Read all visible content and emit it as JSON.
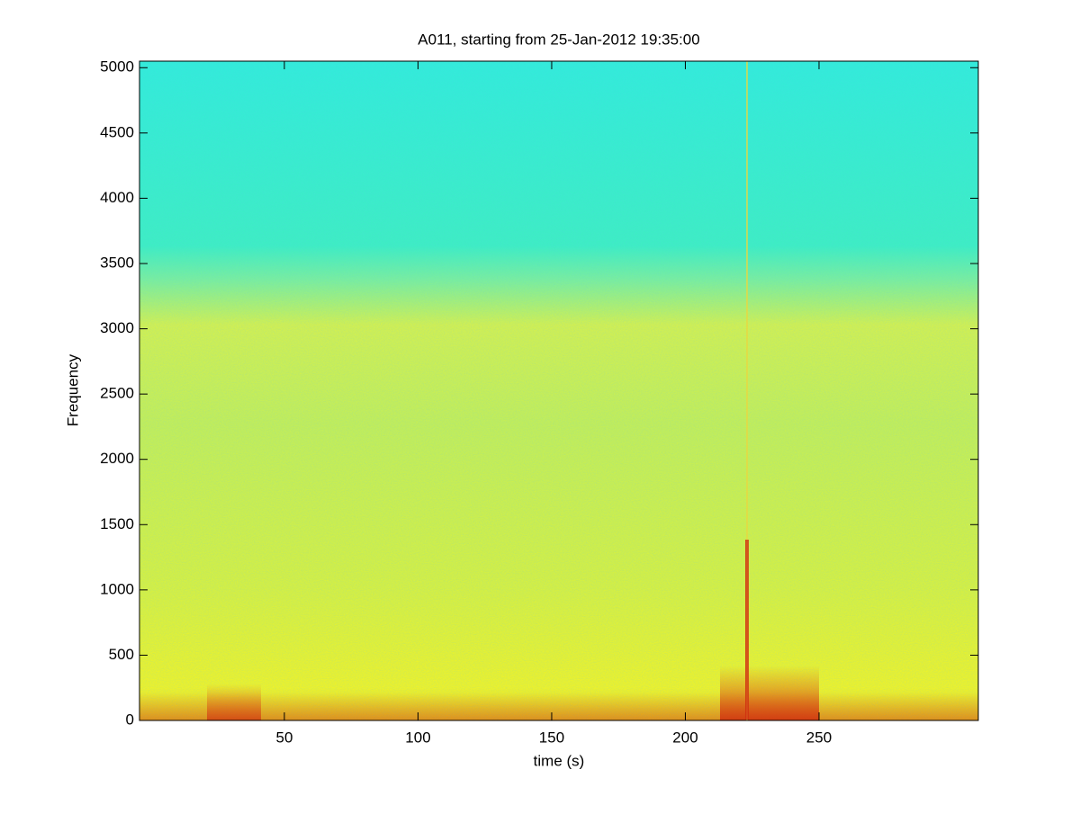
{
  "chart_data": {
    "type": "spectrogram",
    "title": "A011, starting from 25-Jan-2012 19:35:00",
    "x_label": "time (s)",
    "y_label": "Frequency",
    "xlim": [
      -4.2,
      309.6
    ],
    "xticks": [
      50,
      100,
      150,
      200,
      250
    ],
    "ylim": [
      0,
      5050
    ],
    "yticks": [
      0,
      500,
      1000,
      1500,
      2000,
      2500,
      3000,
      3500,
      4000,
      4500,
      5000
    ]
  }
}
